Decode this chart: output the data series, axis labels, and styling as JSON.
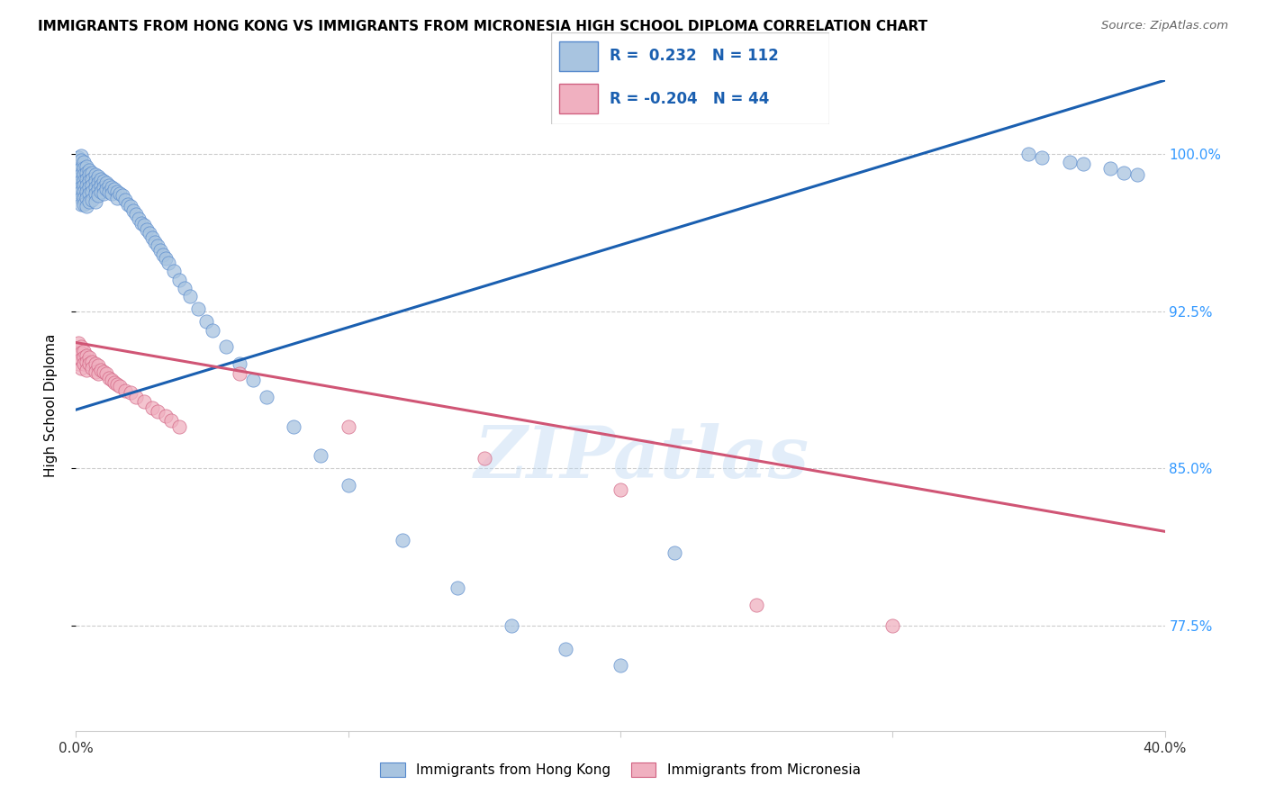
{
  "title": "IMMIGRANTS FROM HONG KONG VS IMMIGRANTS FROM MICRONESIA HIGH SCHOOL DIPLOMA CORRELATION CHART",
  "source": "Source: ZipAtlas.com",
  "ylabel": "High School Diploma",
  "yticks": [
    "77.5%",
    "85.0%",
    "92.5%",
    "100.0%"
  ],
  "ytick_values": [
    0.775,
    0.85,
    0.925,
    1.0
  ],
  "xlim": [
    0.0,
    0.4
  ],
  "ylim": [
    0.725,
    1.035
  ],
  "legend_R_hk": "0.232",
  "legend_N_hk": "112",
  "legend_R_mic": "-0.204",
  "legend_N_mic": "44",
  "color_hk": "#a8c4e0",
  "color_hk_edge": "#5588cc",
  "color_hk_line": "#1a5fb0",
  "color_mic": "#f0b0c0",
  "color_mic_edge": "#d06080",
  "color_mic_line": "#d05575",
  "hk_line_x0": 0.0,
  "hk_line_y0": 0.878,
  "hk_line_x1": 0.4,
  "hk_line_y1": 1.035,
  "mic_line_x0": 0.0,
  "mic_line_y0": 0.91,
  "mic_line_x1": 0.4,
  "mic_line_y1": 0.82,
  "hk_x": [
    0.001,
    0.001,
    0.001,
    0.001,
    0.001,
    0.001,
    0.001,
    0.002,
    0.002,
    0.002,
    0.002,
    0.002,
    0.002,
    0.002,
    0.002,
    0.002,
    0.003,
    0.003,
    0.003,
    0.003,
    0.003,
    0.003,
    0.003,
    0.003,
    0.004,
    0.004,
    0.004,
    0.004,
    0.004,
    0.004,
    0.004,
    0.005,
    0.005,
    0.005,
    0.005,
    0.005,
    0.005,
    0.006,
    0.006,
    0.006,
    0.006,
    0.006,
    0.007,
    0.007,
    0.007,
    0.007,
    0.007,
    0.008,
    0.008,
    0.008,
    0.008,
    0.009,
    0.009,
    0.009,
    0.01,
    0.01,
    0.01,
    0.011,
    0.011,
    0.012,
    0.012,
    0.013,
    0.013,
    0.014,
    0.015,
    0.015,
    0.016,
    0.017,
    0.018,
    0.019,
    0.02,
    0.021,
    0.022,
    0.023,
    0.024,
    0.025,
    0.026,
    0.027,
    0.028,
    0.029,
    0.03,
    0.031,
    0.032,
    0.033,
    0.034,
    0.036,
    0.038,
    0.04,
    0.042,
    0.045,
    0.048,
    0.05,
    0.055,
    0.06,
    0.065,
    0.07,
    0.08,
    0.09,
    0.1,
    0.12,
    0.14,
    0.16,
    0.18,
    0.2,
    0.22,
    0.35,
    0.355,
    0.365,
    0.37,
    0.38,
    0.385,
    0.39
  ],
  "hk_y": [
    0.998,
    0.995,
    0.993,
    0.99,
    0.988,
    0.985,
    0.982,
    0.999,
    0.997,
    0.993,
    0.99,
    0.987,
    0.984,
    0.982,
    0.979,
    0.976,
    0.996,
    0.993,
    0.99,
    0.987,
    0.985,
    0.982,
    0.979,
    0.976,
    0.994,
    0.991,
    0.988,
    0.985,
    0.982,
    0.979,
    0.975,
    0.992,
    0.99,
    0.987,
    0.984,
    0.981,
    0.977,
    0.991,
    0.988,
    0.985,
    0.982,
    0.978,
    0.99,
    0.987,
    0.984,
    0.981,
    0.977,
    0.989,
    0.986,
    0.983,
    0.98,
    0.988,
    0.985,
    0.982,
    0.987,
    0.984,
    0.981,
    0.986,
    0.983,
    0.985,
    0.982,
    0.984,
    0.981,
    0.983,
    0.982,
    0.979,
    0.981,
    0.98,
    0.978,
    0.976,
    0.975,
    0.973,
    0.971,
    0.969,
    0.967,
    0.966,
    0.964,
    0.962,
    0.96,
    0.958,
    0.956,
    0.954,
    0.952,
    0.95,
    0.948,
    0.944,
    0.94,
    0.936,
    0.932,
    0.926,
    0.92,
    0.916,
    0.908,
    0.9,
    0.892,
    0.884,
    0.87,
    0.856,
    0.842,
    0.816,
    0.793,
    0.775,
    0.764,
    0.756,
    0.81,
    1.0,
    0.998,
    0.996,
    0.995,
    0.993,
    0.991,
    0.99
  ],
  "mic_x": [
    0.001,
    0.001,
    0.001,
    0.002,
    0.002,
    0.002,
    0.002,
    0.003,
    0.003,
    0.003,
    0.004,
    0.004,
    0.004,
    0.005,
    0.005,
    0.006,
    0.006,
    0.007,
    0.007,
    0.008,
    0.008,
    0.009,
    0.01,
    0.011,
    0.012,
    0.013,
    0.014,
    0.015,
    0.016,
    0.018,
    0.02,
    0.022,
    0.025,
    0.028,
    0.03,
    0.033,
    0.035,
    0.038,
    0.06,
    0.1,
    0.15,
    0.2,
    0.25,
    0.3
  ],
  "mic_y": [
    0.91,
    0.905,
    0.9,
    0.908,
    0.905,
    0.902,
    0.898,
    0.906,
    0.903,
    0.9,
    0.904,
    0.901,
    0.897,
    0.903,
    0.9,
    0.901,
    0.898,
    0.9,
    0.896,
    0.899,
    0.895,
    0.897,
    0.896,
    0.895,
    0.893,
    0.892,
    0.891,
    0.89,
    0.889,
    0.887,
    0.886,
    0.884,
    0.882,
    0.879,
    0.877,
    0.875,
    0.873,
    0.87,
    0.895,
    0.87,
    0.855,
    0.84,
    0.785,
    0.775
  ]
}
